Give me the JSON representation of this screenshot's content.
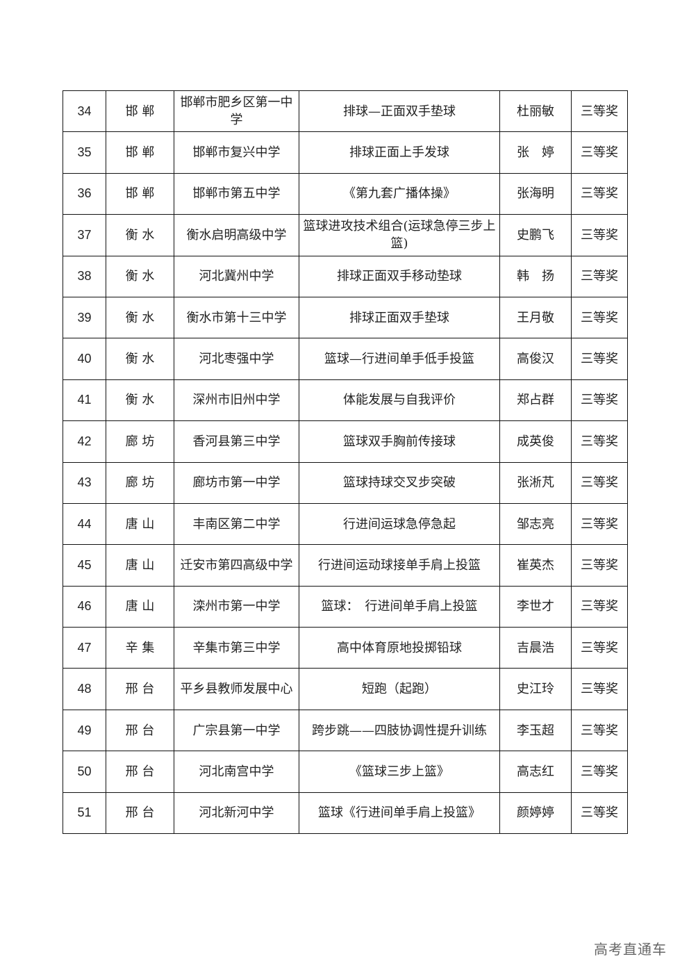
{
  "table": {
    "rows": [
      [
        "34",
        "邯 郸",
        "邯郸市肥乡区第一中学",
        "排球—正面双手垫球",
        "杜丽敏",
        "三等奖"
      ],
      [
        "35",
        "邯 郸",
        "邯郸市复兴中学",
        "排球正面上手发球",
        "张　婷",
        "三等奖"
      ],
      [
        "36",
        "邯 郸",
        "邯郸市第五中学",
        "《第九套广播体操》",
        "张海明",
        "三等奖"
      ],
      [
        "37",
        "衡 水",
        "衡水启明高级中学",
        "篮球进攻技术组合(运球急停三步上篮)",
        "史鹏飞",
        "三等奖"
      ],
      [
        "38",
        "衡 水",
        "河北冀州中学",
        "排球正面双手移动垫球",
        "韩　扬",
        "三等奖"
      ],
      [
        "39",
        "衡 水",
        "衡水市第十三中学",
        "排球正面双手垫球",
        "王月敬",
        "三等奖"
      ],
      [
        "40",
        "衡 水",
        "河北枣强中学",
        "篮球—行进间单手低手投篮",
        "高俊汉",
        "三等奖"
      ],
      [
        "41",
        "衡 水",
        "深州市旧州中学",
        "体能发展与自我评价",
        "郑占群",
        "三等奖"
      ],
      [
        "42",
        "廊 坊",
        "香河县第三中学",
        "篮球双手胸前传接球",
        "成英俊",
        "三等奖"
      ],
      [
        "43",
        "廊 坊",
        "廊坊市第一中学",
        "篮球持球交叉步突破",
        "张淅芃",
        "三等奖"
      ],
      [
        "44",
        "唐 山",
        "丰南区第二中学",
        "行进间运球急停急起",
        "邹志亮",
        "三等奖"
      ],
      [
        "45",
        "唐 山",
        "迁安市第四高级中学",
        "行进间运动球接单手肩上投篮",
        "崔英杰",
        "三等奖"
      ],
      [
        "46",
        "唐 山",
        "滦州市第一中学",
        "篮球：　行进间单手肩上投篮",
        "李世才",
        "三等奖"
      ],
      [
        "47",
        "辛 集",
        "辛集市第三中学",
        "高中体育原地投掷铅球",
        "吉晨浩",
        "三等奖"
      ],
      [
        "48",
        "邢 台",
        "平乡县教师发展中心",
        "短跑（起跑）",
        "史江玲",
        "三等奖"
      ],
      [
        "49",
        "邢 台",
        "广宗县第一中学",
        "跨步跳——四肢协调性提升训练",
        "李玉超",
        "三等奖"
      ],
      [
        "50",
        "邢 台",
        "河北南宫中学",
        "《篮球三步上篮》",
        "高志红",
        "三等奖"
      ],
      [
        "51",
        "邢 台",
        "河北新河中学",
        "篮球《行进间单手肩上投篮》",
        "颜婷婷",
        "三等奖"
      ]
    ]
  },
  "watermark": "高考直通车"
}
